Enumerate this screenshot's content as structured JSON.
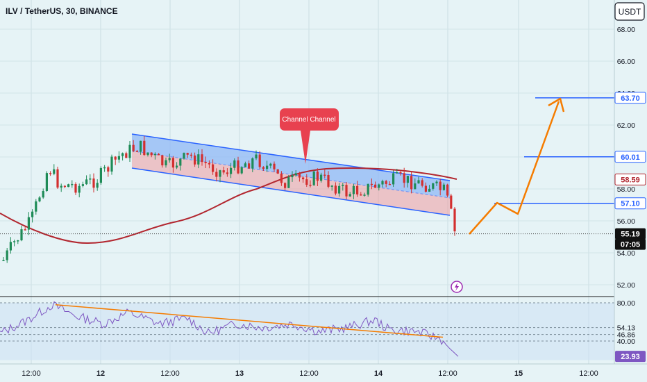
{
  "header": {
    "symbol_title": "ILV / TetherUS, 30, BINANCE"
  },
  "currency_label": "USDT",
  "callout_label": "Channel Channel",
  "time_axis": [
    "12:00",
    "12",
    "12:00",
    "13",
    "12:00",
    "14",
    "12:00",
    "15",
    "12:00"
  ],
  "price_axis": [
    "68.00",
    "66.00",
    "64.00",
    "62.00",
    "60.00",
    "58.00",
    "56.00",
    "54.00",
    "52.00"
  ],
  "price_labels": {
    "target": "63.70",
    "level_60": "60.01",
    "moving_average": "58.59",
    "level_57": "57.10",
    "last_price": "55.19",
    "countdown": "07:05"
  },
  "rsi_axis": [
    "80.00",
    "54.13",
    "46.86",
    "40.00",
    "23.93"
  ],
  "colors": {
    "background": "#e6f3f6",
    "channel_fill": "#8fb8f5",
    "channel_lower_fill": "#ef9aa0",
    "channel_line": "#2962ff",
    "moving_average": "#b2262f",
    "arrow": "#f57c00",
    "callout": "#e8414f",
    "candle_up": "#1e8b57",
    "candle_down": "#d32f2f",
    "rsi_line": "#7e57c2",
    "rsi_trendline": "#f57c00",
    "level_line": "#2962ff",
    "price_badge": "#2962ff",
    "last_price_badge": "#111111",
    "rsi_value_badge": "#7e57c2",
    "lightning_icon": "#9c27b0"
  },
  "icons": [
    "lightning-icon"
  ],
  "chart_data": {
    "type": "candlestick",
    "title": "ILV / TetherUS, 30, BINANCE",
    "price_range": [
      51,
      70
    ],
    "moving_average_value": 58.59,
    "levels": [
      63.7,
      60.01,
      57.1
    ],
    "last_price": 55.19,
    "rsi": {
      "range": [
        20,
        85
      ],
      "levels": [
        80,
        54.13,
        46.86,
        40
      ],
      "last": 23.93
    }
  }
}
